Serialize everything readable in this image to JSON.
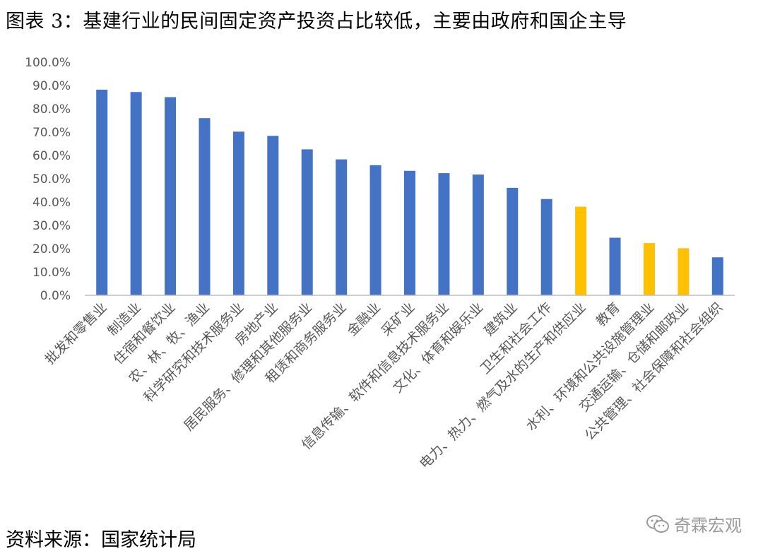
{
  "title": "图表 3：基建行业的民间固定资产投资占比较低，主要由政府和国企主导",
  "source": "资料来源：国家统计局",
  "watermark": {
    "icon": "wechat-icon",
    "text": "奇霖宏观"
  },
  "colors": {
    "primary": "#4472C4",
    "highlight": "#FFC000",
    "axis": "#BFBFBF",
    "text": "#595959"
  },
  "chart_data": {
    "type": "bar",
    "title": "",
    "xlabel": "",
    "ylabel": "",
    "ylim": [
      0,
      100
    ],
    "y_ticks": [
      "0.0%",
      "10.0%",
      "20.0%",
      "30.0%",
      "40.0%",
      "50.0%",
      "60.0%",
      "70.0%",
      "80.0%",
      "90.0%",
      "100.0%"
    ],
    "grid": false,
    "categories": [
      "批发和零售业",
      "制造业",
      "住宿和餐饮业",
      "农、林、牧、渔业",
      "科学研究和技术服务业",
      "房地产业",
      "居民服务、修理和其他服务业",
      "租赁和商务服务业",
      "金融业",
      "采矿业",
      "信息传输、软件和信息技术服务业",
      "文化、体育和娱乐业",
      "建筑业",
      "卫生和社会工作",
      "电力、热力、燃气及水的生产和供应业",
      "教育",
      "水利、环境和公共设施管理业",
      "交通运输、仓储和邮政业",
      "公共管理、社会保障和社会组织"
    ],
    "values": [
      88.2,
      87.2,
      85.0,
      76.0,
      70.2,
      68.4,
      62.6,
      58.3,
      55.8,
      53.4,
      52.4,
      51.8,
      46.1,
      41.3,
      38.0,
      24.7,
      22.4,
      20.2,
      16.3
    ],
    "highlighted": [
      false,
      false,
      false,
      false,
      false,
      false,
      false,
      false,
      false,
      false,
      false,
      false,
      false,
      false,
      true,
      false,
      true,
      true,
      false
    ]
  }
}
